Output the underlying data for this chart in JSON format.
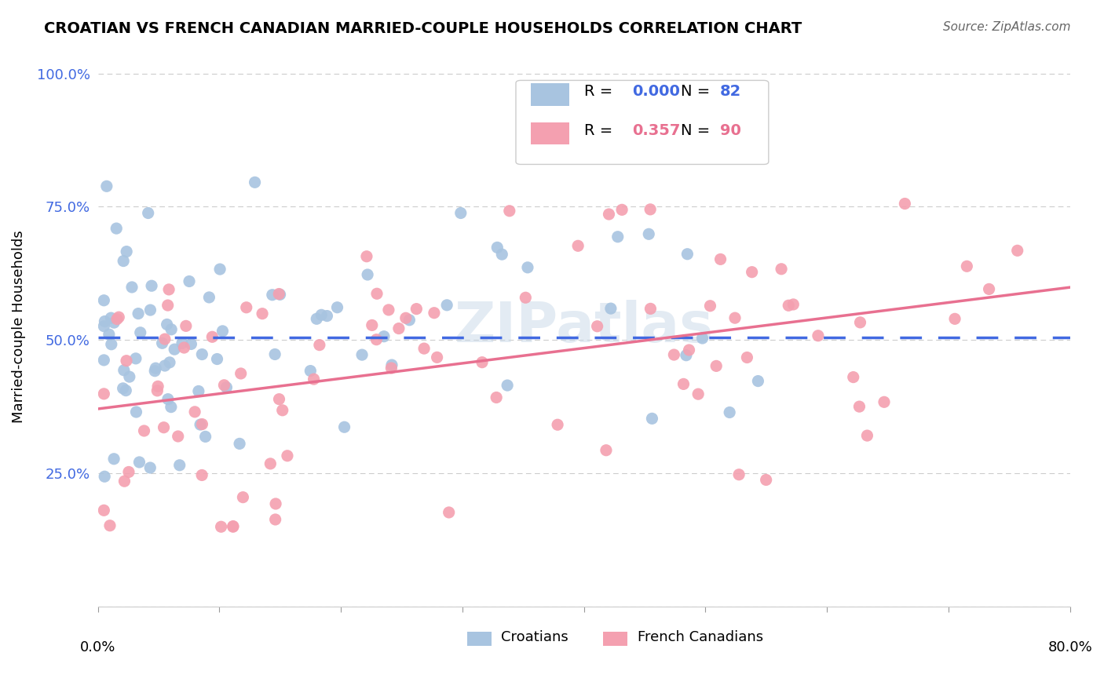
{
  "title": "CROATIAN VS FRENCH CANADIAN MARRIED-COUPLE HOUSEHOLDS CORRELATION CHART",
  "source": "Source: ZipAtlas.com",
  "ylabel": "Married-couple Households",
  "xlim": [
    0.0,
    0.8
  ],
  "ylim": [
    0.0,
    1.05
  ],
  "croatian_color": "#a8c4e0",
  "french_canadian_color": "#f4a0b0",
  "croatian_line_color": "#4169e1",
  "french_canadian_line_color": "#e87090",
  "legend_R1": "0.000",
  "legend_N1": "82",
  "legend_R2": "0.357",
  "legend_N2": "90",
  "watermark": "ZIPatlas"
}
